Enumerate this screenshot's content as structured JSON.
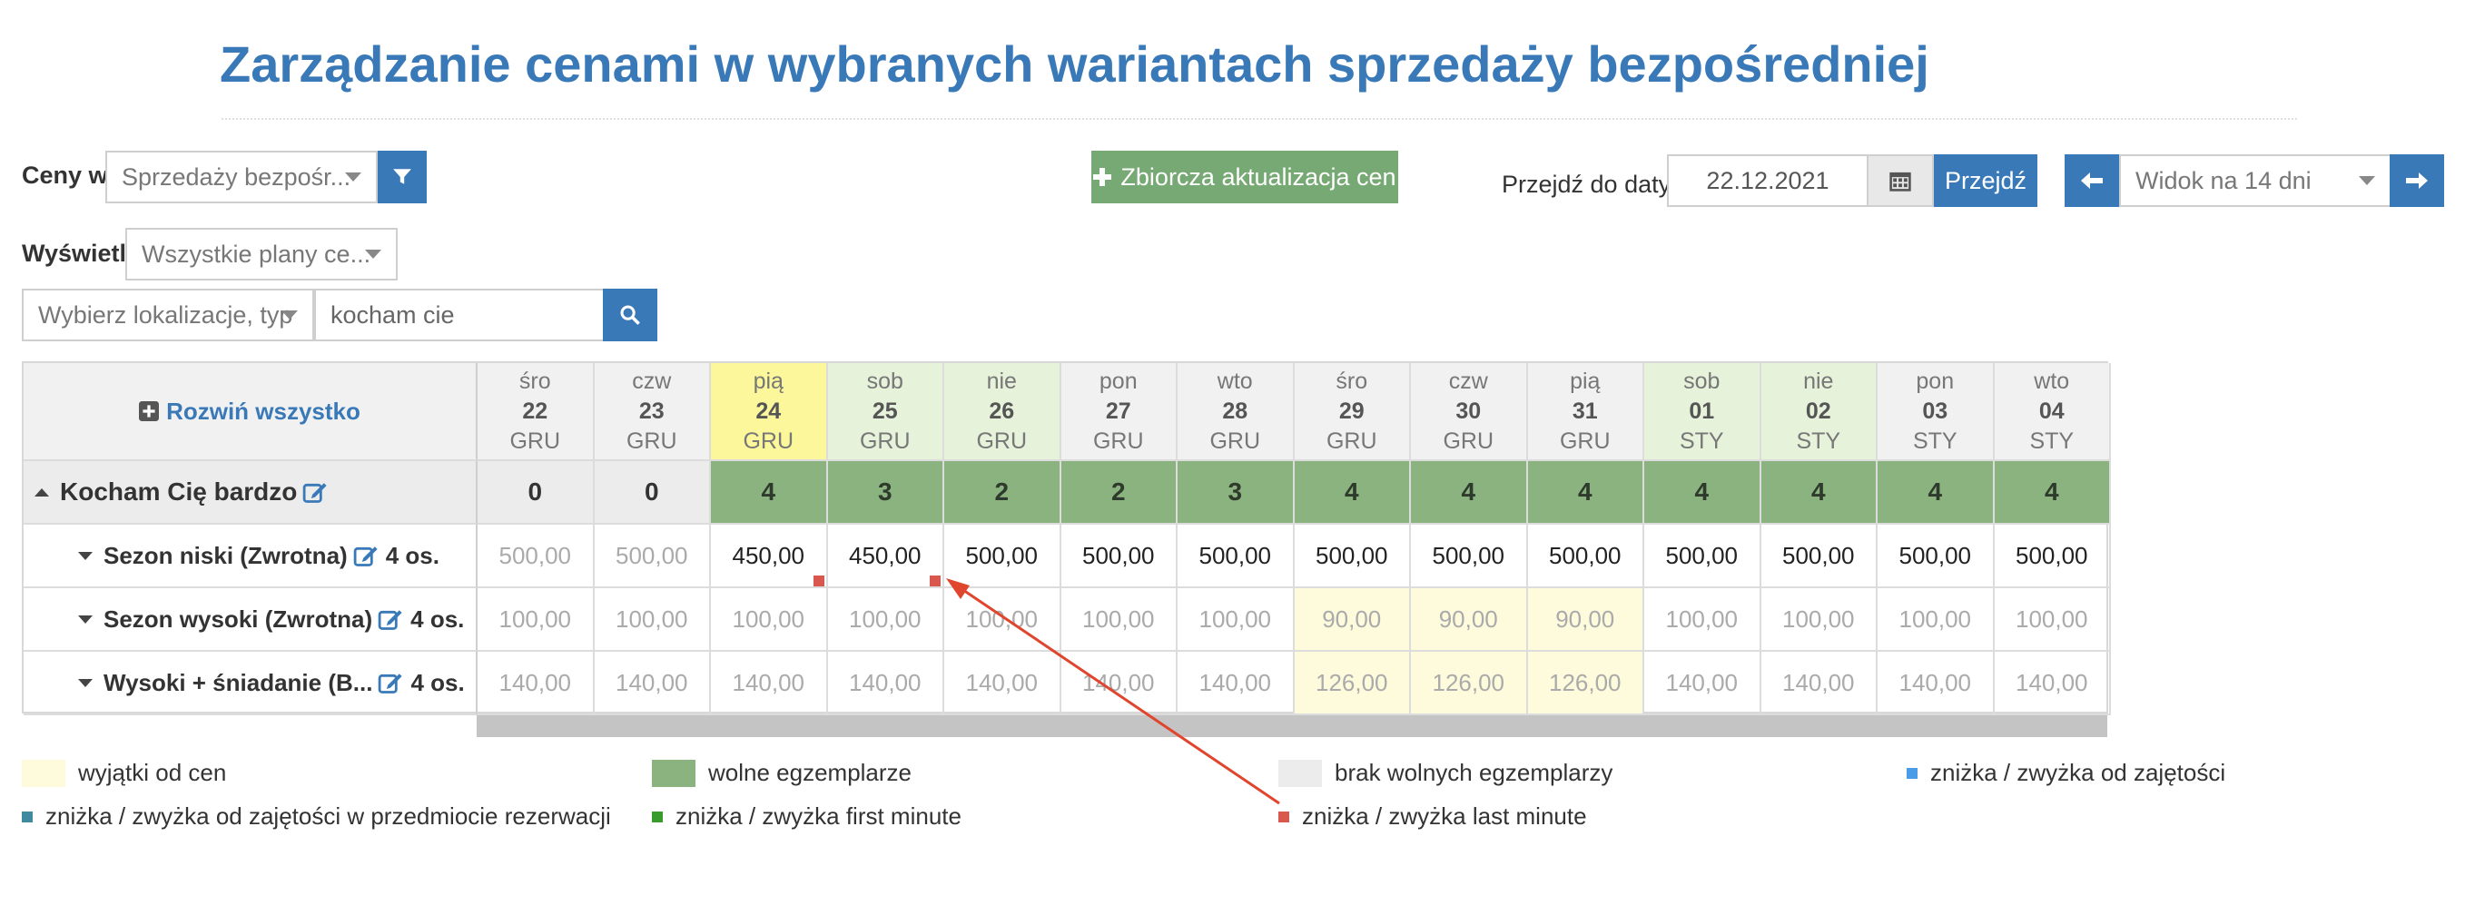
{
  "title": "Zarządzanie cenami w wybranych wariantach sprzedaży bezpośredniej",
  "toolbar": {
    "prices_in_label": "Ceny w",
    "prices_in_value": "Sprzedaży bezpośr...",
    "show_label": "Wyświetl",
    "show_value": "Wszystkie plany ce...",
    "location_value": "Wybierz lokalizacje, typ",
    "search_value": "kocham cie",
    "bulk_update_label": "Zbiorcza aktualizacja cen",
    "goto_label": "Przejdź do daty",
    "goto_date": "22.12.2021",
    "goto_button": "Przejdź",
    "view_value": "Widok na 14 dni"
  },
  "table": {
    "expand_all": "Rozwiń wszystko",
    "days": [
      {
        "dow": "śro",
        "day": "22",
        "mon": "GRU",
        "kind": "normal"
      },
      {
        "dow": "czw",
        "day": "23",
        "mon": "GRU",
        "kind": "normal"
      },
      {
        "dow": "pią",
        "day": "24",
        "mon": "GRU",
        "kind": "today"
      },
      {
        "dow": "sob",
        "day": "25",
        "mon": "GRU",
        "kind": "weekend"
      },
      {
        "dow": "nie",
        "day": "26",
        "mon": "GRU",
        "kind": "weekend"
      },
      {
        "dow": "pon",
        "day": "27",
        "mon": "GRU",
        "kind": "normal"
      },
      {
        "dow": "wto",
        "day": "28",
        "mon": "GRU",
        "kind": "normal"
      },
      {
        "dow": "śro",
        "day": "29",
        "mon": "GRU",
        "kind": "normal"
      },
      {
        "dow": "czw",
        "day": "30",
        "mon": "GRU",
        "kind": "normal"
      },
      {
        "dow": "pią",
        "day": "31",
        "mon": "GRU",
        "kind": "normal"
      },
      {
        "dow": "sob",
        "day": "01",
        "mon": "STY",
        "kind": "weekend"
      },
      {
        "dow": "nie",
        "day": "02",
        "mon": "STY",
        "kind": "weekend"
      },
      {
        "dow": "pon",
        "day": "03",
        "mon": "STY",
        "kind": "normal"
      },
      {
        "dow": "wto",
        "day": "04",
        "mon": "STY",
        "kind": "normal"
      }
    ],
    "room": {
      "name": "Kocham Cię bardzo",
      "availability": [
        "0",
        "0",
        "4",
        "3",
        "2",
        "2",
        "3",
        "4",
        "4",
        "4",
        "4",
        "4",
        "4",
        "4"
      ]
    },
    "plans": [
      {
        "name": "Sezon niski (Zwrotna)",
        "persons": "4 os.",
        "prices": [
          "500,00",
          "500,00",
          "450,00",
          "450,00",
          "500,00",
          "500,00",
          "500,00",
          "500,00",
          "500,00",
          "500,00",
          "500,00",
          "500,00",
          "500,00",
          "500,00"
        ],
        "muted": [
          true,
          true,
          false,
          false,
          false,
          false,
          false,
          false,
          false,
          false,
          false,
          false,
          false,
          false
        ],
        "exception": [
          false,
          false,
          false,
          false,
          false,
          false,
          false,
          false,
          false,
          false,
          false,
          false,
          false,
          false
        ],
        "last_minute": [
          false,
          false,
          true,
          true,
          false,
          false,
          false,
          false,
          false,
          false,
          false,
          false,
          false,
          false
        ]
      },
      {
        "name": "Sezon wysoki (Zwrotna)",
        "persons": "4 os.",
        "prices": [
          "100,00",
          "100,00",
          "100,00",
          "100,00",
          "100,00",
          "100,00",
          "100,00",
          "90,00",
          "90,00",
          "90,00",
          "100,00",
          "100,00",
          "100,00",
          "100,00"
        ],
        "muted": [
          true,
          true,
          true,
          true,
          true,
          true,
          true,
          true,
          true,
          true,
          true,
          true,
          true,
          true
        ],
        "exception": [
          false,
          false,
          false,
          false,
          false,
          false,
          false,
          true,
          true,
          true,
          false,
          false,
          false,
          false
        ],
        "last_minute": [
          false,
          false,
          false,
          false,
          false,
          false,
          false,
          false,
          false,
          false,
          false,
          false,
          false,
          false
        ]
      },
      {
        "name": "Wysoki + śniadanie (B...",
        "persons": "4 os.",
        "prices": [
          "140,00",
          "140,00",
          "140,00",
          "140,00",
          "140,00",
          "140,00",
          "140,00",
          "126,00",
          "126,00",
          "126,00",
          "140,00",
          "140,00",
          "140,00",
          "140,00"
        ],
        "muted": [
          true,
          true,
          true,
          true,
          true,
          true,
          true,
          true,
          true,
          true,
          true,
          true,
          true,
          true
        ],
        "exception": [
          false,
          false,
          false,
          false,
          false,
          false,
          false,
          true,
          true,
          true,
          false,
          false,
          false,
          false
        ],
        "last_minute": [
          false,
          false,
          false,
          false,
          false,
          false,
          false,
          false,
          false,
          false,
          false,
          false,
          false,
          false
        ]
      }
    ]
  },
  "legend": {
    "exceptions": "wyjątki od cen",
    "free_units": "wolne egzemplarze",
    "no_free_units": "brak wolnych egzemplarzy",
    "occupancy": "zniżka / zwyżka od zajętości",
    "occupancy_item": "zniżka / zwyżka od zajętości w przedmiocie rezerwacji",
    "first_minute": "zniżka / zwyżka first minute",
    "last_minute": "zniżka / zwyżka last minute"
  },
  "colors": {
    "accent": "#3a79b8",
    "green": "#76a973",
    "free": "#8ab37f",
    "exception": "#fdfbdc",
    "no_free": "#ececec",
    "occupancy": "#4a9be8",
    "occupancy_item": "#3f8aa0",
    "first_minute": "#3a9a2e",
    "last_minute": "#d9584e",
    "annotation_arrow": "#e0452e"
  }
}
